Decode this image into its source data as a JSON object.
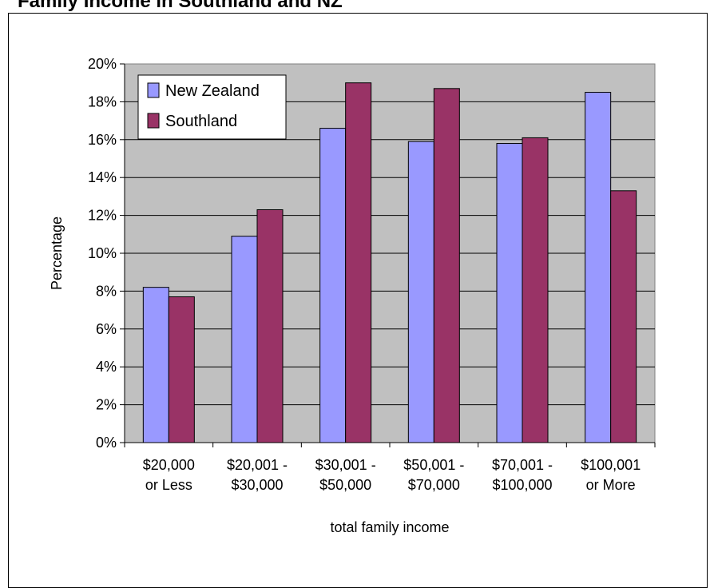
{
  "chart_data": {
    "type": "bar",
    "title": "Family Income in Southland and NZ",
    "xlabel": "total family income",
    "ylabel": "Percentage",
    "categories": [
      [
        "$20,000",
        "or Less"
      ],
      [
        "$20,001 -",
        "$30,000"
      ],
      [
        "$30,001 -",
        "$50,000"
      ],
      [
        "$50,001 -",
        "$70,000"
      ],
      [
        "$70,001 -",
        "$100,000"
      ],
      [
        "$100,001",
        "or More"
      ]
    ],
    "series": [
      {
        "name": "New Zealand",
        "values": [
          8.2,
          10.9,
          16.6,
          15.9,
          15.8,
          18.5
        ]
      },
      {
        "name": "Southland",
        "values": [
          7.7,
          12.3,
          19.0,
          18.7,
          16.1,
          13.3
        ]
      }
    ],
    "ylim": [
      0,
      20
    ],
    "ytick_step": 2,
    "ytick_format": "%",
    "grid": true,
    "legend": "top-left",
    "colors": {
      "New Zealand": "#9999ff",
      "Southland": "#993366",
      "plot_bg": "#c0c0c0"
    }
  }
}
